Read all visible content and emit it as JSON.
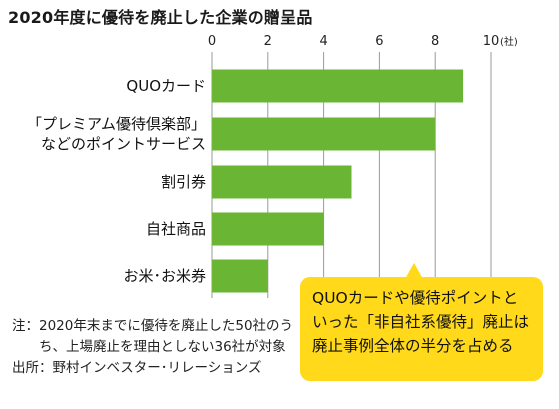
{
  "title": "2020年度に優待を廃止した企業の贈呈品",
  "chart_data": {
    "type": "bar",
    "orientation": "horizontal",
    "title": "2020年度に優待を廃止した企業の贈呈品",
    "categories": [
      [
        "QUOカード"
      ],
      [
        "「プレミアム優待倶楽部」",
        "などのポイントサービス"
      ],
      [
        "割引券"
      ],
      [
        "自社商品"
      ],
      [
        "お米･お米券"
      ]
    ],
    "values": [
      9,
      8,
      5,
      4,
      2
    ],
    "xlim": [
      0,
      10
    ],
    "ticks": [
      0,
      2,
      4,
      6,
      8,
      10
    ],
    "unit_label": "(社)",
    "bar_color": "#6ab533",
    "grid": true,
    "axis_position": "top"
  },
  "note": {
    "label": "注：",
    "text": "2020年末までに優待を廃止した50社のうち、上場廃止を理由としない36社が対象"
  },
  "source": {
    "label": "出所：",
    "text": "野村インベスター･リレーションズ"
  },
  "callout": {
    "text": "QUOカードや優待ポイントといった「非自社系優待」廃止は廃止事例全体の半分を占める",
    "color": "#ffd91a"
  }
}
